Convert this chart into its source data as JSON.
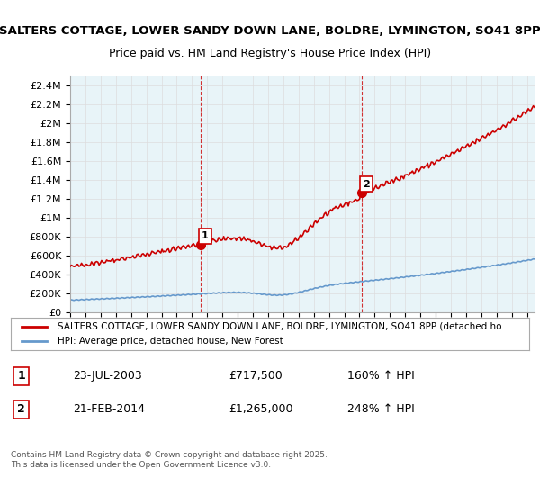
{
  "title1": "SALTERS COTTAGE, LOWER SANDY DOWN LANE, BOLDRE, LYMINGTON, SO41 8PP",
  "title2": "Price paid vs. HM Land Registry's House Price Index (HPI)",
  "ylabel_ticks": [
    "£0",
    "£200K",
    "£400K",
    "£600K",
    "£800K",
    "£1M",
    "£1.2M",
    "£1.4M",
    "£1.6M",
    "£1.8M",
    "£2M",
    "£2.2M",
    "£2.4M"
  ],
  "ytick_values": [
    0,
    200000,
    400000,
    600000,
    800000,
    1000000,
    1200000,
    1400000,
    1600000,
    1800000,
    2000000,
    2200000,
    2400000
  ],
  "xlim": [
    1995,
    2025.5
  ],
  "ylim": [
    0,
    2500000
  ],
  "marker1_x": 2003.55,
  "marker1_y": 717500,
  "marker1_label": "1",
  "marker2_x": 2014.13,
  "marker2_y": 1265000,
  "marker2_label": "2",
  "vline1_x": 2003.55,
  "vline2_x": 2014.13,
  "legend_line1": "SALTERS COTTAGE, LOWER SANDY DOWN LANE, BOLDRE, LYMINGTON, SO41 8PP (detached ho",
  "legend_line2": "HPI: Average price, detached house, New Forest",
  "table_row1": [
    "1",
    "23-JUL-2003",
    "£717,500",
    "160% ↑ HPI"
  ],
  "table_row2": [
    "2",
    "21-FEB-2014",
    "£1,265,000",
    "248% ↑ HPI"
  ],
  "footnote": "Contains HM Land Registry data © Crown copyright and database right 2025.\nThis data is licensed under the Open Government Licence v3.0.",
  "line_color_property": "#cc0000",
  "line_color_hpi": "#6699cc",
  "bg_color": "#ffffff",
  "grid_color": "#dddddd",
  "title_fontsize": 10,
  "subtitle_fontsize": 9
}
